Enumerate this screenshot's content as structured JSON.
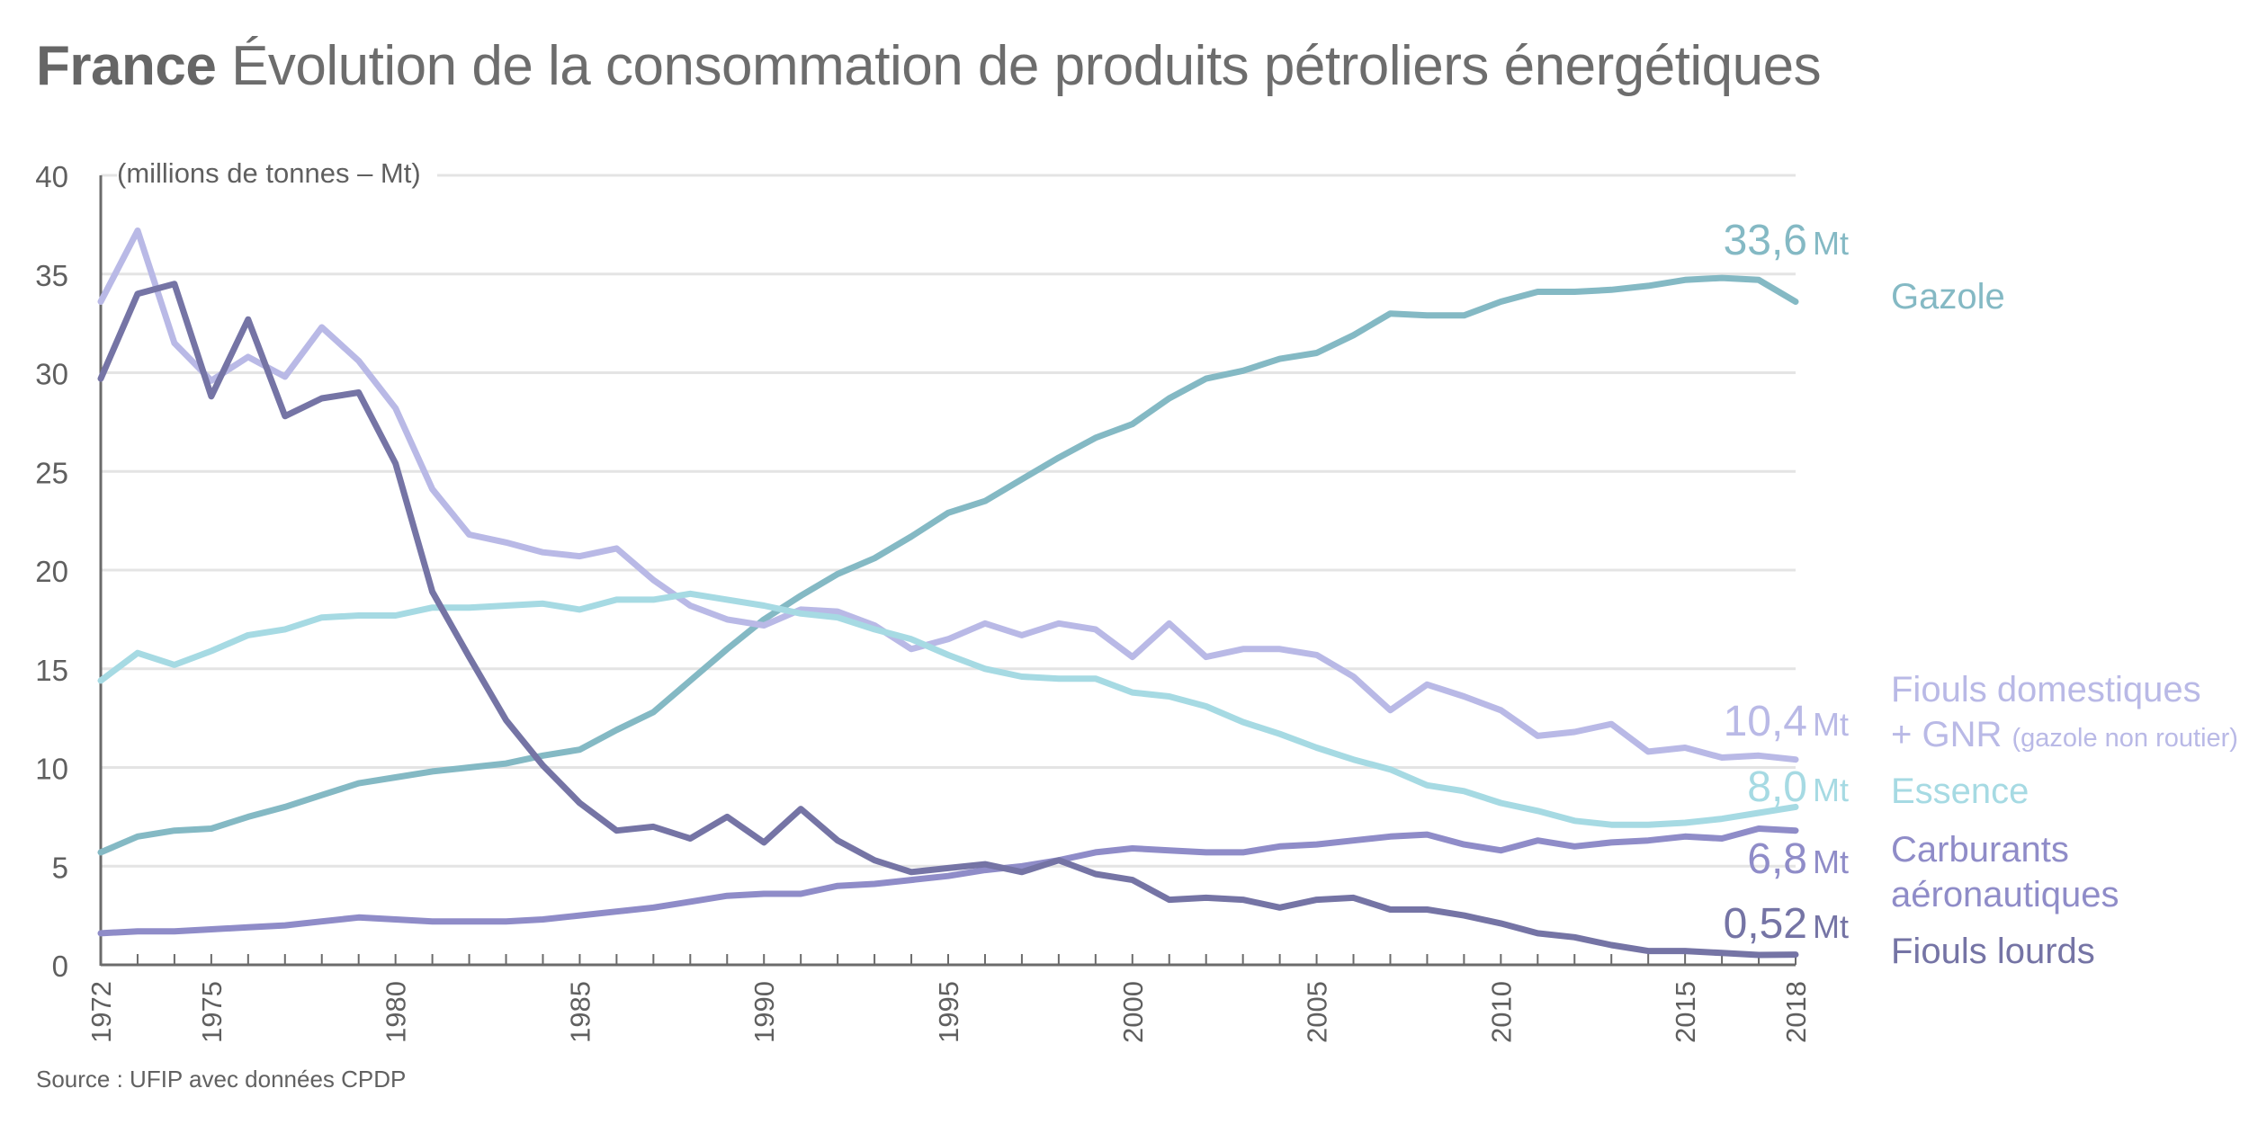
{
  "title": {
    "bold": "France",
    "rest": "Évolution de la consommation de produits pétroliers énergétiques"
  },
  "unit_note": "(millions de tonnes – Mt)",
  "source": "Source : UFIP avec données CPDP",
  "colors": {
    "gazole": "#84b9c4",
    "fiouls_domestiques": "#b9b9e6",
    "essence": "#a6dae3",
    "carburants_aero": "#8f8cc8",
    "fiouls_lourds": "#7574a5",
    "grid": "#e4e4e4",
    "axis": "#6b6b6b",
    "tick_text": "#5f5f5f"
  },
  "end_labels": [
    {
      "key": "gazole",
      "value": "33,6",
      "unit": "Mt"
    },
    {
      "key": "fiouls_domestiques",
      "value": "10,4",
      "unit": "Mt"
    },
    {
      "key": "essence",
      "value": "8,0",
      "unit": "Mt"
    },
    {
      "key": "carburants_aero",
      "value": "6,8",
      "unit": "Mt"
    },
    {
      "key": "fiouls_lourds",
      "value": "0,52",
      "unit": "Mt"
    }
  ],
  "legend": [
    {
      "key": "gazole",
      "line1": "Gazole"
    },
    {
      "key": "fiouls_domestiques",
      "line1": "Fiouls domestiques",
      "line2": "+ GNR",
      "line2_small": "(gazole non routier)"
    },
    {
      "key": "essence",
      "line1": "Essence"
    },
    {
      "key": "carburants_aero",
      "line1": "Carburants",
      "line2": "aéronautiques"
    },
    {
      "key": "fiouls_lourds",
      "line1": "Fiouls lourds"
    }
  ],
  "chart_data": {
    "type": "line",
    "title": "France Évolution de la consommation de produits pétroliers énergétiques",
    "xlabel": "",
    "ylabel": "(millions de tonnes – Mt)",
    "ylim": [
      0,
      40
    ],
    "yticks": [
      0,
      5,
      10,
      15,
      20,
      25,
      30,
      35,
      40
    ],
    "xlim": [
      1972,
      2018
    ],
    "xtick_labels": [
      "1972",
      "1975",
      "1980",
      "1985",
      "1990",
      "1995",
      "2000",
      "2005",
      "2010",
      "2015",
      "2018"
    ],
    "grid": true,
    "legend_position": "right (direct labels)",
    "x": [
      1972,
      1973,
      1974,
      1975,
      1976,
      1977,
      1978,
      1979,
      1980,
      1981,
      1982,
      1983,
      1984,
      1985,
      1986,
      1987,
      1988,
      1989,
      1990,
      1991,
      1992,
      1993,
      1994,
      1995,
      1996,
      1997,
      1998,
      1999,
      2000,
      2001,
      2002,
      2003,
      2004,
      2005,
      2006,
      2007,
      2008,
      2009,
      2010,
      2011,
      2012,
      2013,
      2014,
      2015,
      2016,
      2017,
      2018
    ],
    "series": [
      {
        "key": "gazole",
        "name": "Gazole",
        "values": [
          5.7,
          6.5,
          6.8,
          6.9,
          7.5,
          8.0,
          8.6,
          9.2,
          9.5,
          9.8,
          10.0,
          10.2,
          10.6,
          10.9,
          11.9,
          12.8,
          14.4,
          16.0,
          17.5,
          18.7,
          19.8,
          20.6,
          21.7,
          22.9,
          23.5,
          24.6,
          25.7,
          26.7,
          27.4,
          28.7,
          29.7,
          30.1,
          30.7,
          31.0,
          31.9,
          33.0,
          32.9,
          32.9,
          33.6,
          34.1,
          34.1,
          34.2,
          34.4,
          34.7,
          34.8,
          34.7,
          33.6
        ]
      },
      {
        "key": "fiouls_domestiques",
        "name": "Fiouls domestiques + GNR (gazole non routier)",
        "values": [
          33.6,
          37.2,
          31.5,
          29.6,
          30.8,
          29.8,
          32.3,
          30.6,
          28.2,
          24.1,
          21.8,
          21.4,
          20.9,
          20.7,
          21.1,
          19.5,
          18.2,
          17.5,
          17.2,
          18.0,
          17.9,
          17.2,
          16.0,
          16.5,
          17.3,
          16.7,
          17.3,
          17.0,
          15.6,
          17.3,
          15.6,
          16.0,
          16.0,
          15.7,
          14.6,
          12.9,
          14.2,
          13.6,
          12.9,
          11.6,
          11.8,
          12.2,
          10.8,
          11.0,
          10.5,
          10.6,
          10.4
        ]
      },
      {
        "key": "essence",
        "name": "Essence",
        "values": [
          14.4,
          15.8,
          15.2,
          15.9,
          16.7,
          17.0,
          17.6,
          17.7,
          17.7,
          18.1,
          18.1,
          18.2,
          18.3,
          18.0,
          18.5,
          18.5,
          18.8,
          18.5,
          18.2,
          17.8,
          17.6,
          17.0,
          16.5,
          15.7,
          15.0,
          14.6,
          14.5,
          14.5,
          13.8,
          13.6,
          13.1,
          12.3,
          11.7,
          11.0,
          10.4,
          9.9,
          9.1,
          8.8,
          8.2,
          7.8,
          7.3,
          7.1,
          7.1,
          7.2,
          7.4,
          7.7,
          8.0
        ]
      },
      {
        "key": "carburants_aero",
        "name": "Carburants aéronautiques",
        "values": [
          1.6,
          1.7,
          1.7,
          1.8,
          1.9,
          2.0,
          2.2,
          2.4,
          2.3,
          2.2,
          2.2,
          2.2,
          2.3,
          2.5,
          2.7,
          2.9,
          3.2,
          3.5,
          3.6,
          3.6,
          4.0,
          4.1,
          4.3,
          4.5,
          4.8,
          5.0,
          5.3,
          5.7,
          5.9,
          5.8,
          5.7,
          5.7,
          6.0,
          6.1,
          6.3,
          6.5,
          6.6,
          6.1,
          5.8,
          6.3,
          6.0,
          6.2,
          6.3,
          6.5,
          6.4,
          6.9,
          6.8
        ]
      },
      {
        "key": "fiouls_lourds",
        "name": "Fiouls lourds",
        "values": [
          29.7,
          34.0,
          34.5,
          28.8,
          32.7,
          27.8,
          28.7,
          29.0,
          25.4,
          18.9,
          15.6,
          12.4,
          10.1,
          8.2,
          6.8,
          7.0,
          6.4,
          7.5,
          6.2,
          7.9,
          6.3,
          5.3,
          4.7,
          4.9,
          5.1,
          4.7,
          5.3,
          4.6,
          4.3,
          3.3,
          3.4,
          3.3,
          2.9,
          3.3,
          3.4,
          2.8,
          2.8,
          2.5,
          2.1,
          1.6,
          1.4,
          1.0,
          0.7,
          0.7,
          0.6,
          0.5,
          0.52
        ]
      }
    ]
  }
}
